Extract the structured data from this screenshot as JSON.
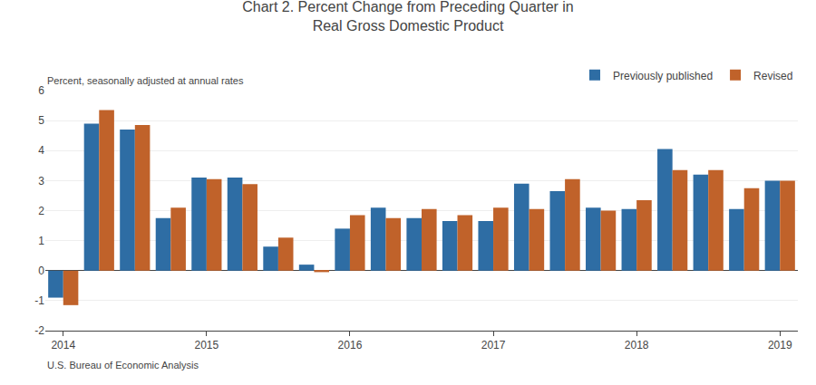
{
  "chart_data": {
    "type": "bar",
    "title": "Chart 2. Percent Change from Preceding Quarter in\nReal Gross Domestic Product",
    "ylabel": "Percent, seasonally adjusted at annual rates",
    "annotations": [
      "U.S. Bureau of Economic Analysis"
    ],
    "categories": [
      "2014",
      null,
      null,
      null,
      "2015",
      null,
      null,
      null,
      "2016",
      null,
      null,
      null,
      "2017",
      null,
      null,
      null,
      "2018",
      null,
      null,
      null,
      "2019"
    ],
    "series": [
      {
        "name": "Previously published",
        "color": "#2E6DA4",
        "values": [
          -0.9,
          4.9,
          4.7,
          1.75,
          3.1,
          3.1,
          0.8,
          0.2,
          1.4,
          2.1,
          1.75,
          1.65,
          1.65,
          2.9,
          2.65,
          2.1,
          2.05,
          4.05,
          3.2,
          2.05,
          3.0
        ]
      },
      {
        "name": "Revised",
        "color": "#C0622A",
        "values": [
          -1.15,
          5.35,
          4.85,
          2.1,
          3.05,
          2.88,
          1.1,
          -0.05,
          1.85,
          1.75,
          2.05,
          1.85,
          2.1,
          2.05,
          3.05,
          2.0,
          2.35,
          3.35,
          3.35,
          2.75,
          3.0
        ]
      }
    ],
    "ylim": [
      -2,
      6
    ],
    "yticks": [
      -2,
      -1,
      0,
      1,
      2,
      3,
      4,
      5,
      6
    ],
    "grid": true,
    "legend": "upper right"
  }
}
